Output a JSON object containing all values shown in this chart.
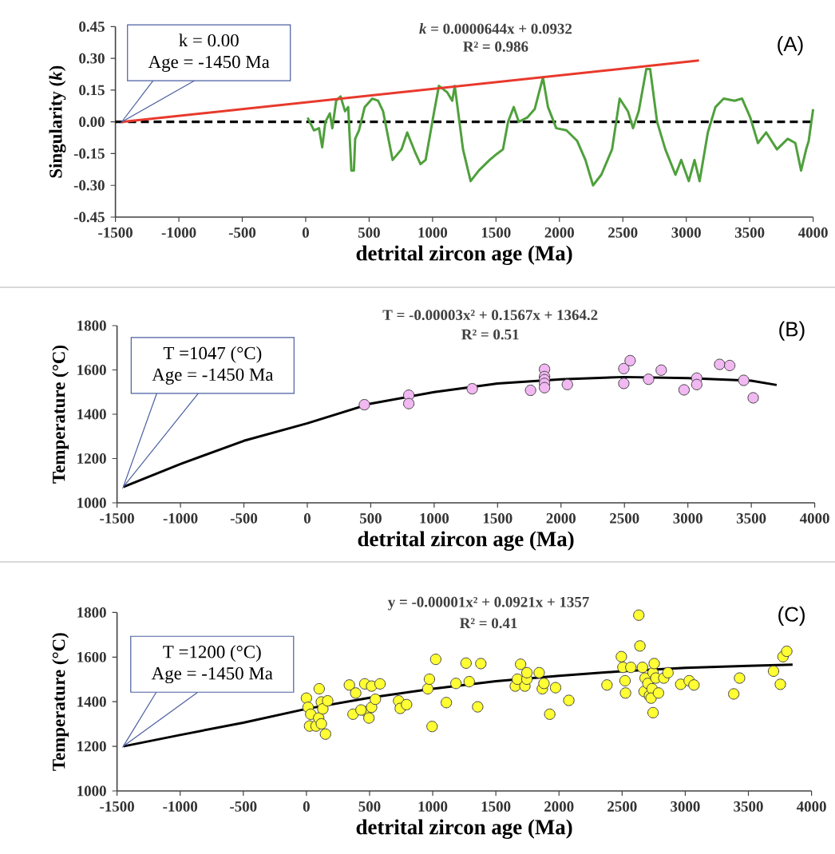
{
  "chart_data": [
    {
      "type": "line",
      "xlabel": "detrital zircon age (Ma)",
      "ylabel": "Singularity (*k*)",
      "xlim": [
        -1500,
        4000
      ],
      "xticks": [
        -1500,
        -1000,
        -500,
        0,
        500,
        1000,
        1500,
        2000,
        2500,
        3000,
        3500,
        4000
      ],
      "ylim": [
        -0.45,
        0.45
      ],
      "yticks": [
        {
          "value": -0.45,
          "label": "-0.45"
        },
        {
          "value": -0.3,
          "label": "-0.30"
        },
        {
          "value": -0.15,
          "label": "-0.15"
        },
        {
          "value": 0,
          "label": "0.00"
        },
        {
          "value": 0.15,
          "label": "0.15"
        },
        {
          "value": 0.3,
          "label": "0.30"
        },
        {
          "value": 0.45,
          "label": "0.45"
        }
      ],
      "series": [
        {
          "color": "#4fa03c",
          "x": [
            15,
            65,
            105,
            130,
            155,
            190,
            210,
            240,
            275,
            310,
            335,
            360,
            380,
            390,
            420,
            465,
            525,
            570,
            610,
            685,
            755,
            800,
            860,
            905,
            945,
            1010,
            1050,
            1115,
            1155,
            1175,
            1240,
            1300,
            1365,
            1450,
            1510,
            1555,
            1595,
            1640,
            1680,
            1745,
            1805,
            1870,
            1910,
            1975,
            2055,
            2140,
            2205,
            2265,
            2330,
            2415,
            2475,
            2540,
            2580,
            2625,
            2685,
            2715,
            2770,
            2835,
            2915,
            2960,
            3020,
            3065,
            3105,
            3170,
            3230,
            3295,
            3380,
            3440,
            3505,
            3565,
            3630,
            3715,
            3800,
            3860,
            3905,
            3945,
            3965,
            4000
          ],
          "values": [
            0.02,
            -0.04,
            -0.03,
            -0.12,
            0,
            0.04,
            -0.03,
            0.1,
            0.12,
            0.05,
            0.07,
            -0.23,
            -0.23,
            -0.08,
            -0.04,
            0.07,
            0.11,
            0.1,
            0.05,
            -0.18,
            -0.13,
            -0.05,
            -0.14,
            -0.2,
            -0.18,
            0.04,
            0.17,
            0.14,
            0.1,
            0.17,
            -0.13,
            -0.28,
            -0.23,
            -0.18,
            -0.15,
            -0.13,
            0,
            0.07,
            0,
            0.02,
            0.06,
            0.21,
            0.07,
            -0.03,
            -0.04,
            -0.09,
            -0.18,
            -0.3,
            -0.25,
            -0.13,
            0.11,
            0.05,
            -0.03,
            0.05,
            0.25,
            0.25,
            0,
            -0.13,
            -0.25,
            -0.18,
            -0.28,
            -0.18,
            -0.28,
            -0.05,
            0.07,
            0.11,
            0.1,
            0.11,
            0.02,
            -0.1,
            -0.05,
            -0.13,
            -0.08,
            -0.1,
            -0.23,
            -0.13,
            -0.09,
            0.06
          ]
        },
        {
          "color": "#e8392c",
          "x": [
            -1450,
            3100
          ],
          "values": [
            0,
            0.29
          ]
        }
      ],
      "ref_lines": [
        {
          "axis": "y",
          "value": 0,
          "color": "#000000",
          "line_style": "dashed"
        }
      ],
      "annotations": [
        "k = 0.00",
        "Age = -1450 Ma",
        "*k* = 0.0000644x + 0.0932",
        "R² = 0.986",
        "(A)"
      ]
    },
    {
      "type": "scatter",
      "xlabel": "detrital zircon age (Ma)",
      "ylabel": "Temperature (°C)",
      "xlim": [
        -1500,
        4000
      ],
      "xticks": [
        -1500,
        -1000,
        -500,
        0,
        500,
        1000,
        1500,
        2000,
        2500,
        3000,
        3500,
        4000
      ],
      "ylim": [
        1000,
        1800
      ],
      "yticks": [
        1000,
        1200,
        1400,
        1600,
        1800
      ],
      "series": [
        {
          "type": "line",
          "color": "#000000",
          "x": [
            -1450,
            -1000,
            -500,
            0,
            500,
            1000,
            1500,
            2000,
            2500,
            3000,
            3500,
            3700
          ],
          "values": [
            1072,
            1175,
            1280,
            1359,
            1448,
            1500,
            1539,
            1558,
            1568,
            1563,
            1551,
            1532
          ]
        },
        {
          "color": "#f2b8f2",
          "x": [
            450,
            800,
            800,
            1300,
            1760,
            1870,
            1870,
            1870,
            1870,
            1870,
            2050,
            2495,
            2545,
            2495,
            2690,
            2790,
            2970,
            3070,
            3070,
            3250,
            3330,
            3440,
            3515
          ],
          "values": [
            1443,
            1486,
            1448,
            1515,
            1508,
            1603,
            1570,
            1556,
            1539,
            1520,
            1534,
            1606,
            1642,
            1539,
            1558,
            1599,
            1510,
            1563,
            1534,
            1625,
            1620,
            1553,
            1474
          ]
        }
      ],
      "annotations": [
        "T =1047 (°C)",
        "Age = -1450 Ma",
        "T = -0.00003x² + 0.1567x + 1364.2",
        "R² = 0.51",
        "(B)"
      ]
    },
    {
      "type": "scatter",
      "xlabel": "detrital zircon age (Ma)",
      "ylabel": "Temperature (°C)",
      "xlim": [
        -1500,
        4000
      ],
      "xticks": [
        -1500,
        -1000,
        -500,
        0,
        500,
        1000,
        1500,
        2000,
        2500,
        3000,
        3500,
        4000
      ],
      "ylim": [
        1000,
        1800
      ],
      "yticks": [
        1000,
        1200,
        1400,
        1600,
        1800
      ],
      "series": [
        {
          "type": "line",
          "color": "#000000",
          "x": [
            -1450,
            -1000,
            -500,
            0,
            500,
            1000,
            1500,
            2000,
            2500,
            3000,
            3500,
            3850
          ],
          "values": [
            1200,
            1251,
            1306,
            1368,
            1418,
            1458,
            1492,
            1516,
            1537,
            1552,
            1561,
            1566
          ]
        },
        {
          "color": "#ffff33",
          "x": [
            0,
            13,
            34,
            25,
            76,
            97,
            101,
            118,
            130,
            118,
            151,
            168,
            340,
            390,
            369,
            462,
            516,
            474,
            495,
            516,
            546,
            583,
            432,
            730,
            743,
            793,
            961,
            974,
            1024,
            995,
            1108,
            1184,
            1264,
            1289,
            1356,
            1381,
            1654,
            1671,
            1696,
            1730,
            1746,
            1746,
            1843,
            1868,
            1881,
            1927,
            1973,
            2078,
            2380,
            2494,
            2506,
            2523,
            2527,
            2569,
            2641,
            2632,
            2661,
            2682,
            2674,
            2704,
            2716,
            2737,
            2745,
            2754,
            2745,
            2729,
            2788,
            2767,
            2830,
            2863,
            2964,
            3031,
            3069,
            3384,
            3430,
            3699,
            3753,
            3774,
            3804
          ],
          "values": [
            1416,
            1375,
            1344,
            1291,
            1291,
            1327,
            1458,
            1399,
            1368,
            1301,
            1255,
            1404,
            1475,
            1439,
            1344,
            1480,
            1470,
            1356,
            1327,
            1375,
            1411,
            1480,
            1363,
            1404,
            1370,
            1387,
            1458,
            1501,
            1590,
            1289,
            1396,
            1482,
            1573,
            1490,
            1377,
            1571,
            1470,
            1501,
            1568,
            1470,
            1501,
            1530,
            1530,
            1458,
            1482,
            1344,
            1463,
            1406,
            1475,
            1602,
            1554,
            1494,
            1439,
            1554,
            1650,
            1788,
            1554,
            1506,
            1446,
            1482,
            1427,
            1458,
            1530,
            1571,
            1351,
            1416,
            1439,
            1506,
            1506,
            1530,
            1478,
            1494,
            1475,
            1435,
            1506,
            1537,
            1478,
            1602,
            1626
          ]
        }
      ],
      "annotations": [
        "T =1200 (°C)",
        "Age = -1450 Ma",
        "y = -0.00001x² + 0.0921x + 1357",
        "R² = 0.41",
        "(C)"
      ]
    }
  ]
}
